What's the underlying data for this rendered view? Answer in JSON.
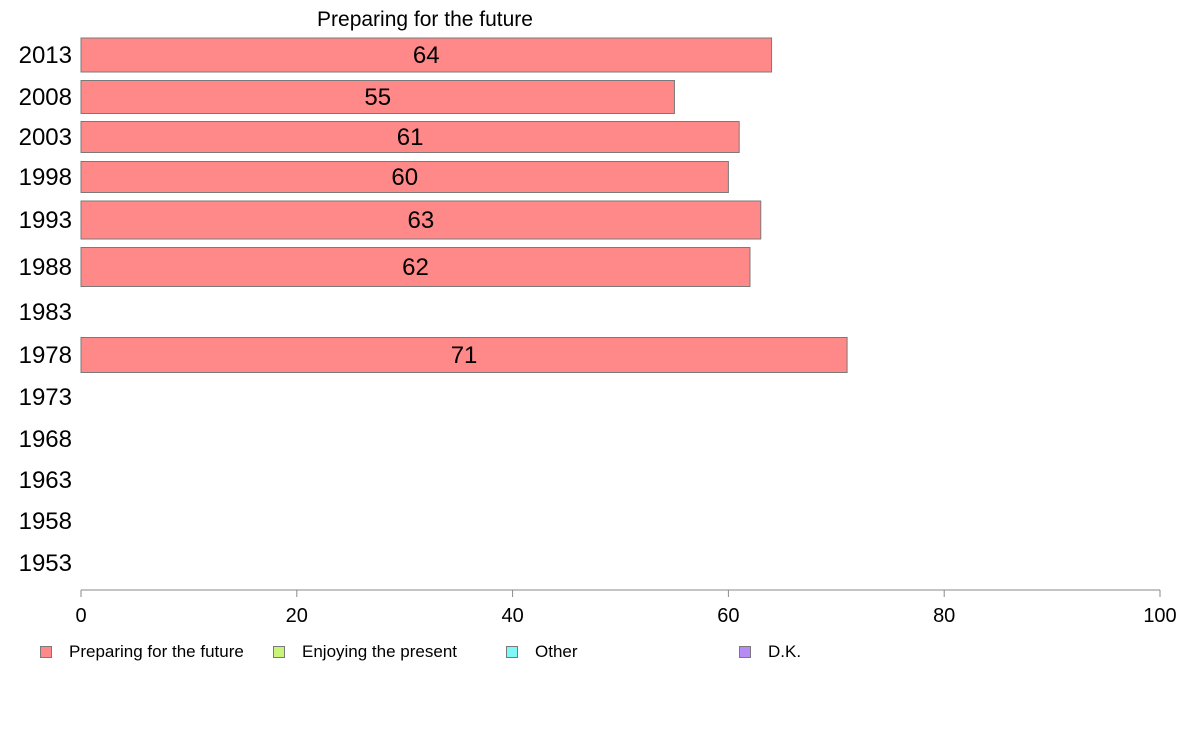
{
  "chart_data": {
    "type": "bar",
    "orientation": "horizontal",
    "title": "Preparing for the future",
    "categories": [
      "2013",
      "2008",
      "2003",
      "1998",
      "1993",
      "1988",
      "1983",
      "1978",
      "1973",
      "1968",
      "1963",
      "1958",
      "1953"
    ],
    "series": [
      {
        "name": "Preparing for the future",
        "color": "#ff8888",
        "values": [
          64,
          55,
          61,
          60,
          63,
          62,
          null,
          71,
          null,
          null,
          null,
          null,
          null
        ]
      }
    ],
    "xlim": [
      0,
      100
    ],
    "xticks": [
      0,
      20,
      40,
      60,
      80,
      100
    ],
    "grid": false,
    "legend_position": "bottom"
  },
  "legend": [
    {
      "label": "Preparing for the future",
      "color": "#ff8888"
    },
    {
      "label": "Enjoying the present",
      "color": "#c8f47a"
    },
    {
      "label": "Other",
      "color": "#7ef7f7"
    },
    {
      "label": "D.K.",
      "color": "#b78bf5"
    }
  ]
}
